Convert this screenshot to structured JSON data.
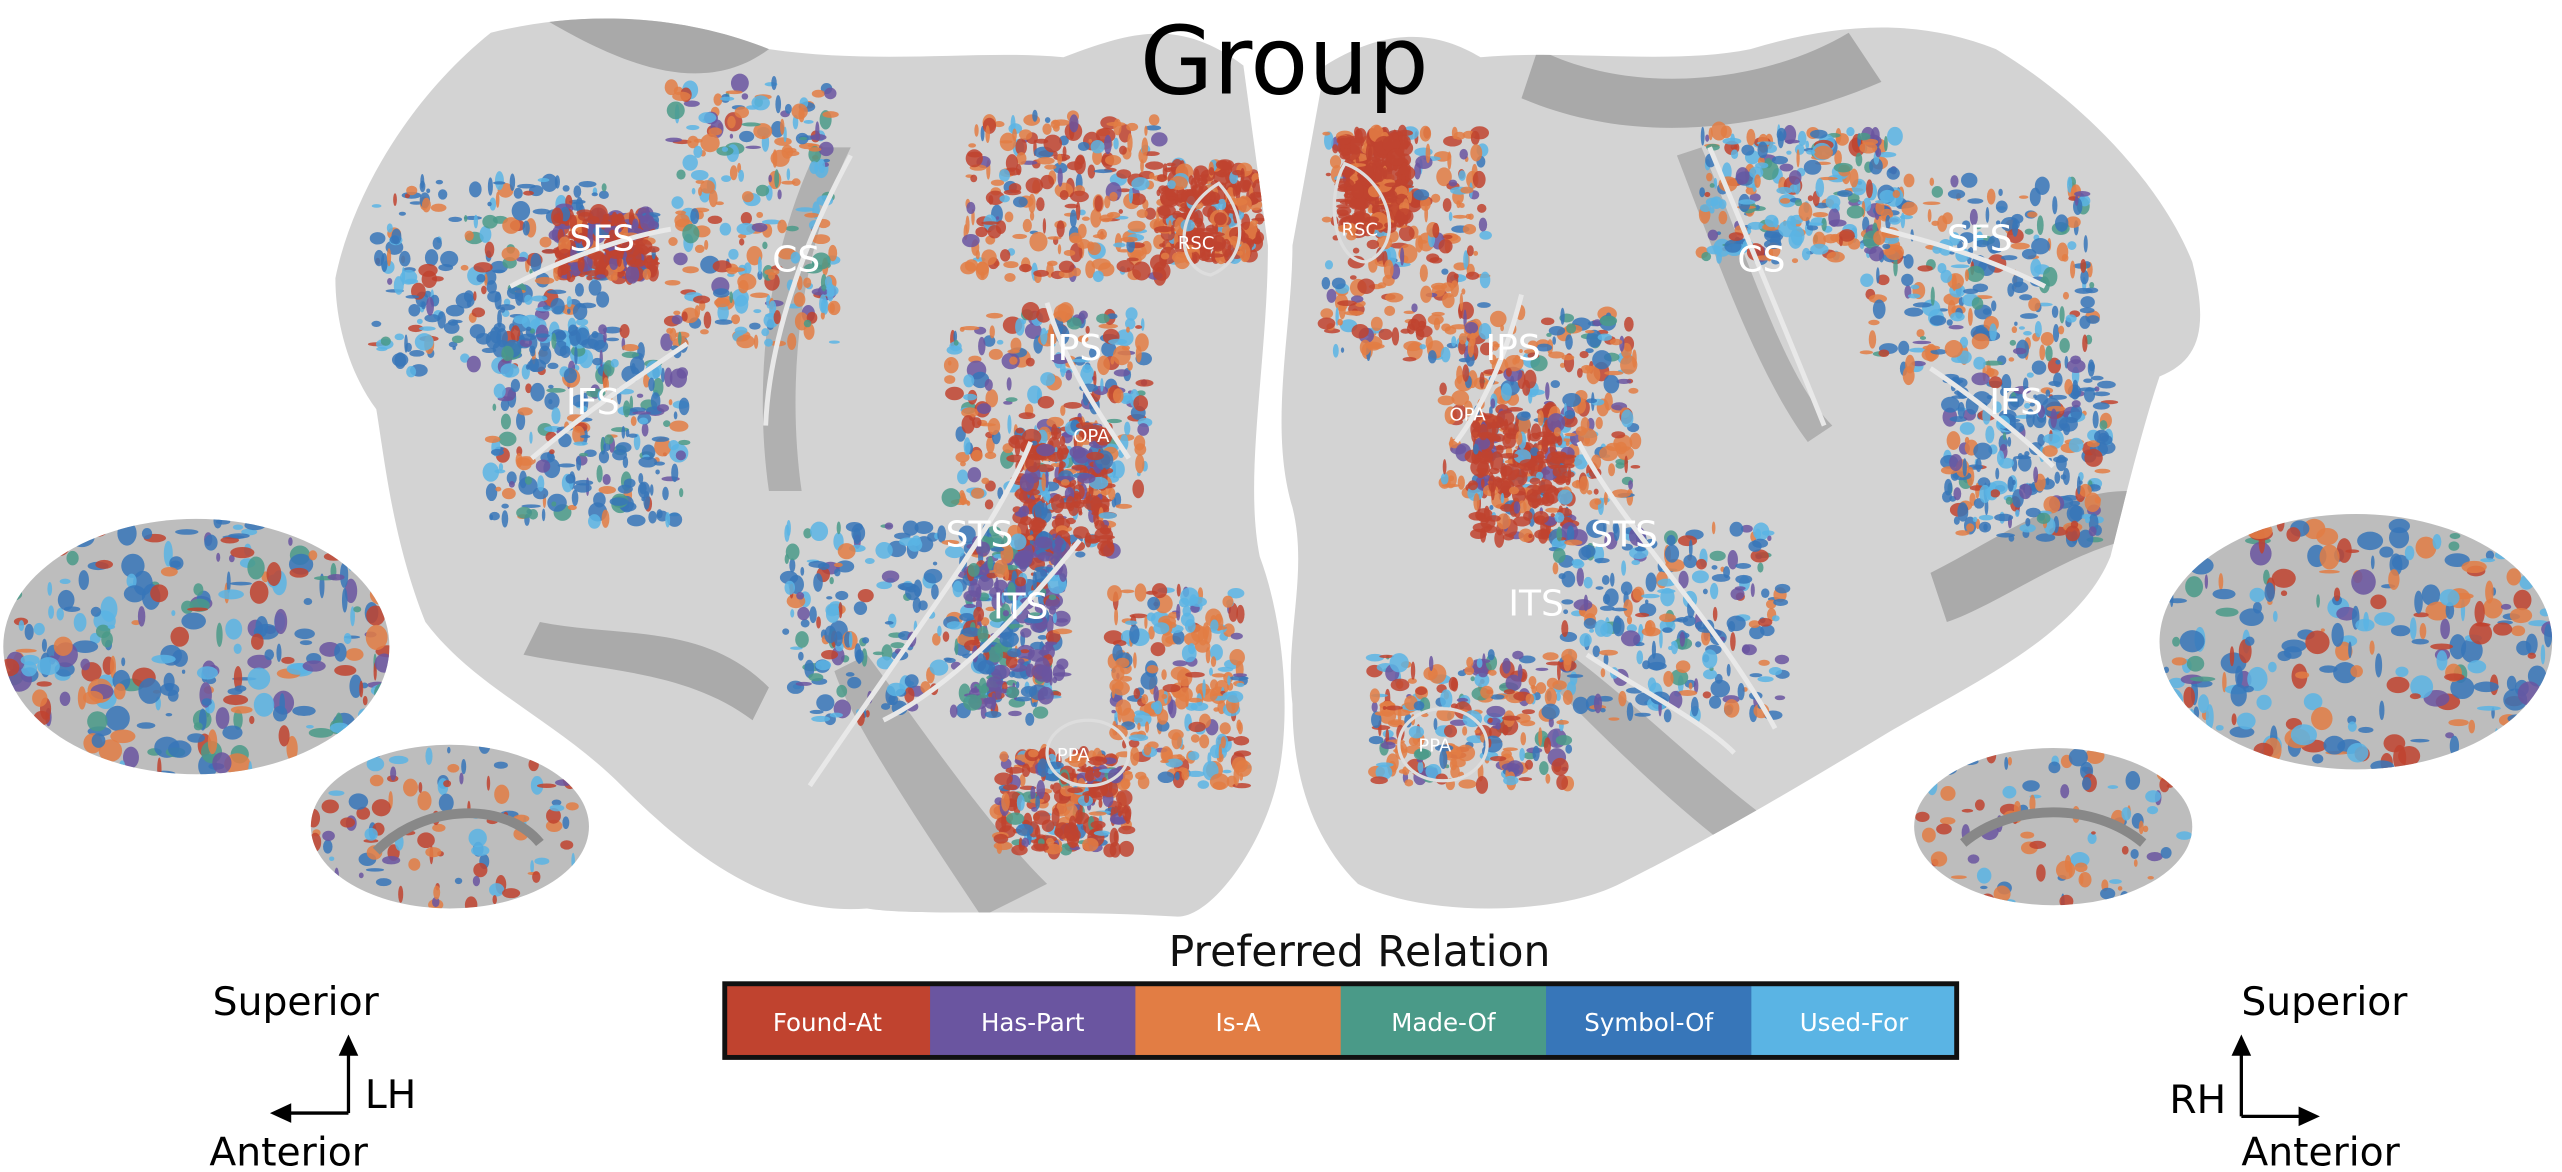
{
  "title": "Group",
  "legend": {
    "title": "Preferred Relation",
    "items": [
      {
        "label": "Found-At",
        "color": "#c0432f"
      },
      {
        "label": "Has-Part",
        "color": "#6a55a0"
      },
      {
        "label": "Is-A",
        "color": "#e27d44"
      },
      {
        "label": "Made-Of",
        "color": "#4a9a88"
      },
      {
        "label": "Symbol-Of",
        "color": "#3776b9"
      },
      {
        "label": "Used-For",
        "color": "#5ab4e4"
      }
    ]
  },
  "left_hemisphere": {
    "label": "LH",
    "sulci": [
      "SFS",
      "CS",
      "IFS",
      "IPS",
      "STS",
      "ITS"
    ],
    "rois": [
      "RSC",
      "OPA",
      "PPA"
    ],
    "orientation": {
      "up": "Superior",
      "side": "Anterior"
    }
  },
  "right_hemisphere": {
    "label": "RH",
    "sulci": [
      "RSC",
      "CS",
      "SFS",
      "IPS",
      "IFS",
      "STS",
      "ITS"
    ],
    "rois": [
      "RSC",
      "OPA",
      "PPA"
    ],
    "orientation": {
      "up": "Superior",
      "side": "Anterior"
    }
  },
  "colors": {
    "cortex_light": "#d3d3d3",
    "cortex_dark": "#a9a9a9",
    "background": "#ffffff"
  }
}
